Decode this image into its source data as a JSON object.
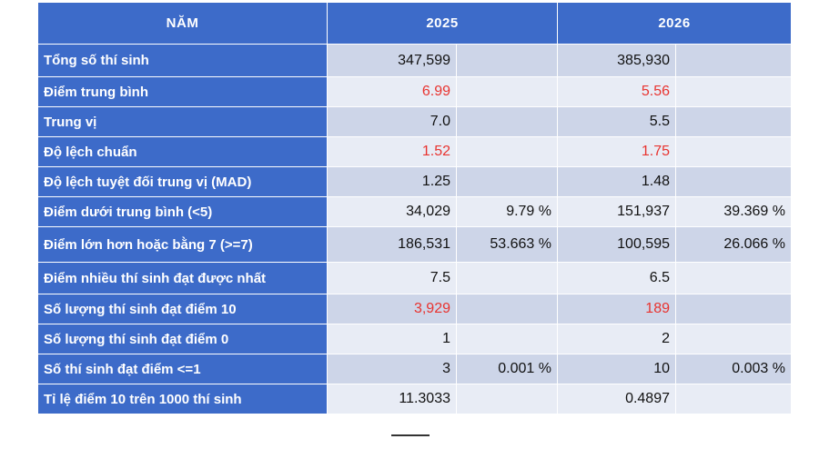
{
  "header": {
    "label": "NĂM",
    "year1": "2025",
    "year2": "2026"
  },
  "rows": [
    {
      "label": "Tổng số thí sinh",
      "v1": "347,599",
      "p1": "",
      "v2": "385,930",
      "p2": ""
    },
    {
      "label": "Điểm trung bình",
      "v1": "6.99",
      "p1": "",
      "v2": "5.56",
      "p2": ""
    },
    {
      "label": "Trung vị",
      "v1": "7.0",
      "p1": "",
      "v2": "5.5",
      "p2": ""
    },
    {
      "label": "Độ lệch chuẩn",
      "v1": "1.52",
      "p1": "",
      "v2": "1.75",
      "p2": ""
    },
    {
      "label": "Độ lệch tuyệt đối trung vị (MAD)",
      "v1": "1.25",
      "p1": "",
      "v2": "1.48",
      "p2": ""
    },
    {
      "label": "Điểm dưới trung bình (<5)",
      "v1": "34,029",
      "p1": "9.79 %",
      "v2": "151,937",
      "p2": "39.369 %"
    },
    {
      "label": "Điểm lớn hơn hoặc bằng 7 (>=7)",
      "v1": "186,531",
      "p1": "53.663 %",
      "v2": "100,595",
      "p2": "26.066 %"
    },
    {
      "label": "Điểm nhiều thí sinh đạt được nhất",
      "v1": "7.5",
      "p1": "",
      "v2": "6.5",
      "p2": ""
    },
    {
      "label": "Số lượng thí sinh đạt điểm 10",
      "v1": "3,929",
      "p1": "",
      "v2": "189",
      "p2": ""
    },
    {
      "label": "Số lượng thí sinh đạt điểm 0",
      "v1": "1",
      "p1": "",
      "v2": "2",
      "p2": ""
    },
    {
      "label": "Số thí sinh đạt điểm <=1",
      "v1": "3",
      "p1": "0.001 %",
      "v2": "10",
      "p2": "0.003 %"
    },
    {
      "label": "Tỉ lệ điểm 10 trên 1000 thí sinh",
      "v1": "11.3033",
      "p1": "",
      "v2": "0.4897",
      "p2": ""
    }
  ],
  "colors": {
    "header_blue": "#3d6bc9",
    "highlight_red": "#e8332f"
  }
}
